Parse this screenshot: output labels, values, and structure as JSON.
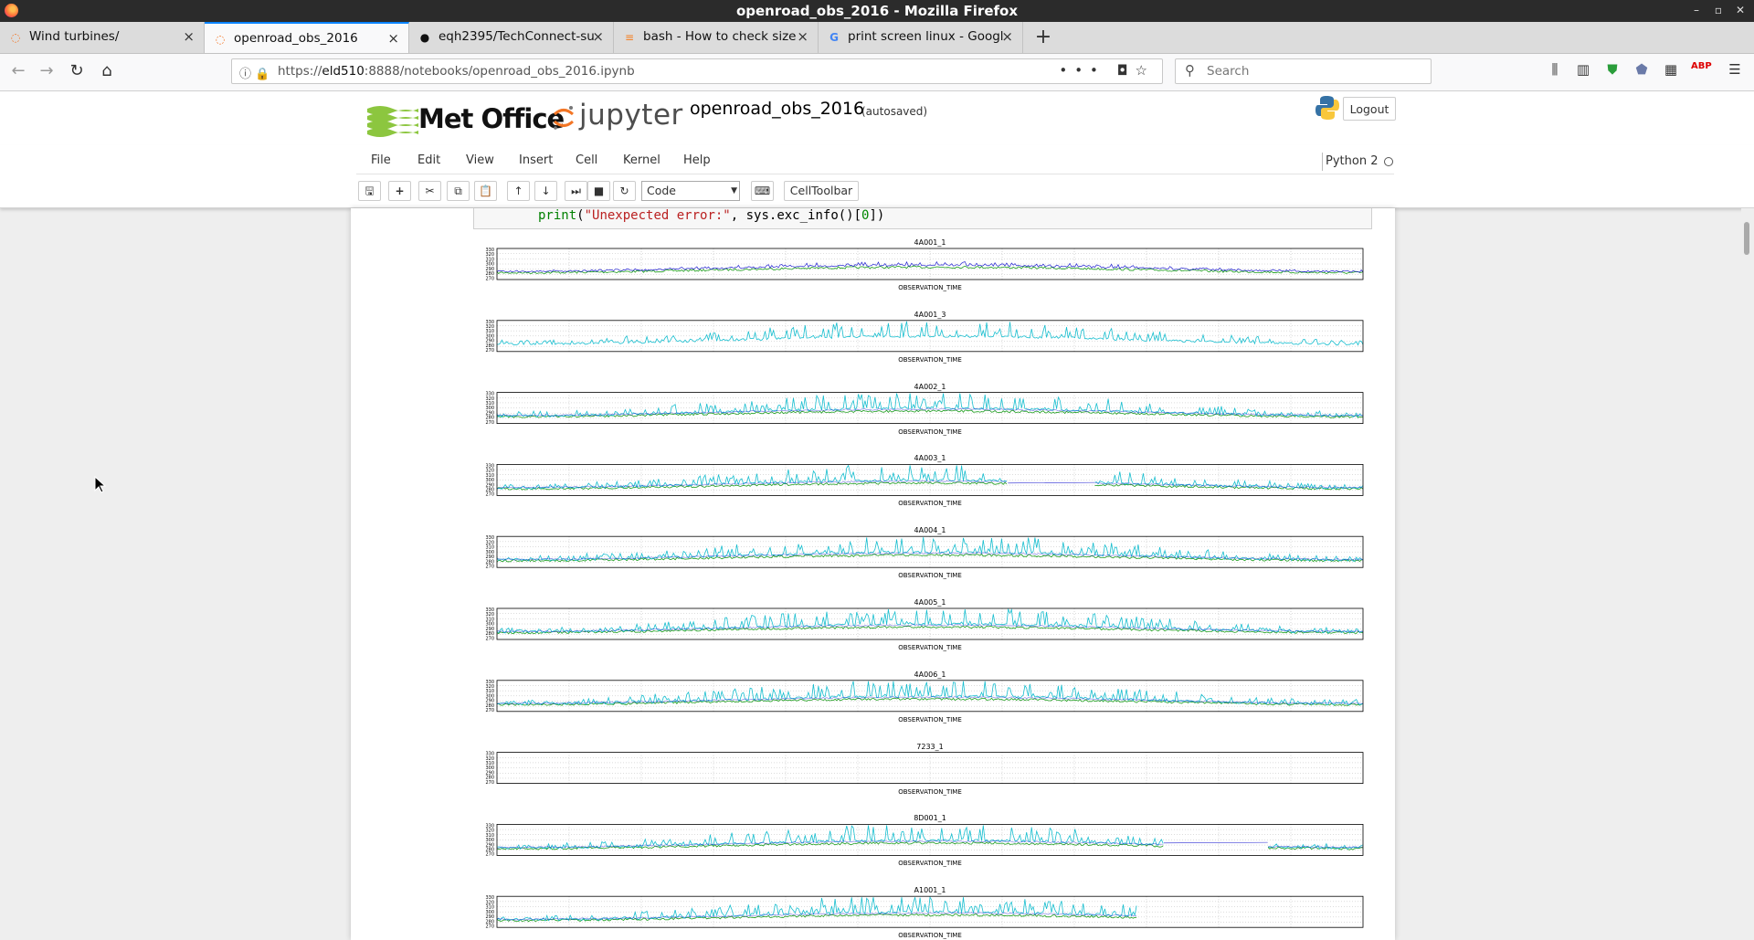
{
  "window": {
    "title": "openroad_obs_2016 - Mozilla Firefox"
  },
  "tabs": [
    {
      "label": "Wind turbines/",
      "icon": "jupyter-icon"
    },
    {
      "label": "openroad_obs_2016",
      "icon": "jupyter-icon",
      "active": true
    },
    {
      "label": "eqh2395/TechConnect-su",
      "icon": "github-icon"
    },
    {
      "label": "bash - How to check size",
      "icon": "stackoverflow-icon"
    },
    {
      "label": "print screen linux - Googl",
      "icon": "google-icon"
    }
  ],
  "navbar": {
    "url_prefix": "https://",
    "url_host": "eld510",
    "url_rest": ":8888/notebooks/openroad_obs_2016.ipynb",
    "url_dots": "•••",
    "search_placeholder": "Search"
  },
  "header": {
    "brand": "Met Office",
    "app": "jupyter",
    "notebook_name": "openroad_obs_2016",
    "autosave": "(autosaved)",
    "logout_label": "Logout"
  },
  "menu": {
    "items": [
      "File",
      "Edit",
      "View",
      "Insert",
      "Cell",
      "Kernel",
      "Help"
    ],
    "kernel_name": "Python 2"
  },
  "toolbar": {
    "cell_type": "Code",
    "celltoolbar_label": "CellToolbar"
  },
  "code": {
    "fn": "print",
    "arg_str": "\"Unexpected error:\"",
    "rest": ", sys.exc_info()[",
    "idx": "0",
    "end": "])"
  },
  "chart_data": {
    "type": "line",
    "ytick_labels": [
      "330",
      "320",
      "310",
      "300",
      "290",
      "280",
      "270"
    ],
    "xlabel": "OBSERVATION_TIME",
    "plots": [
      {
        "title": "4A001_1",
        "pattern": "blue-green"
      },
      {
        "title": "4A001_3",
        "pattern": "cyan"
      },
      {
        "title": "4A002_1",
        "pattern": "full"
      },
      {
        "title": "4A003_1",
        "pattern": "gap"
      },
      {
        "title": "4A004_1",
        "pattern": "full"
      },
      {
        "title": "4A005_1",
        "pattern": "full"
      },
      {
        "title": "4A006_1",
        "pattern": "full"
      },
      {
        "title": "7233_1",
        "pattern": "empty"
      },
      {
        "title": "8D001_1",
        "pattern": "late-gap"
      },
      {
        "title": "A1001_1",
        "pattern": "partial"
      }
    ],
    "colors": {
      "cyan": "#17becf",
      "blue": "#1f1fd0",
      "green": "#1a9c1a",
      "grid": "#bbbbbb"
    }
  }
}
